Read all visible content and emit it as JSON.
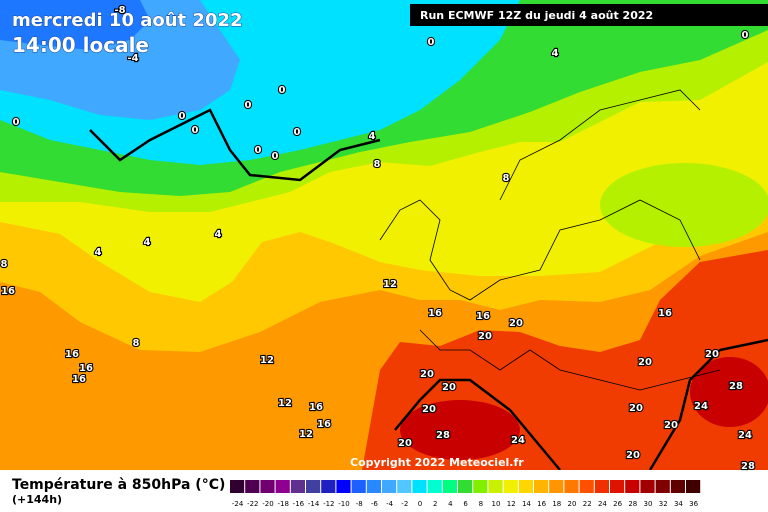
{
  "header": {
    "date": "mercredi 10 août 2022",
    "time": "14:00 locale",
    "run_info": "Run ECMWF 12Z du jeudi 4 août 2022"
  },
  "footer": {
    "copyright": "Copyright 2022 Meteociel.fr"
  },
  "legend": {
    "title": "Température à 850hPa (°C)",
    "range": "(+144h)",
    "ticks": [
      -24,
      -22,
      -20,
      -18,
      -16,
      -14,
      -12,
      -10,
      -8,
      -6,
      -4,
      -2,
      0,
      2,
      4,
      6,
      8,
      10,
      12,
      14,
      16,
      18,
      20,
      22,
      24,
      26,
      28,
      30,
      32,
      34,
      36
    ],
    "colors": [
      "#300030",
      "#500050",
      "#700070",
      "#900090",
      "#603090",
      "#4040a0",
      "#2020c0",
      "#0000ff",
      "#1e60ff",
      "#2888ff",
      "#40a8ff",
      "#50c8ff",
      "#00e0ff",
      "#00ffd0",
      "#00ff80",
      "#32dc32",
      "#80f000",
      "#c8f000",
      "#f0f000",
      "#ffd700",
      "#ffb400",
      "#ff9600",
      "#ff7800",
      "#ff5000",
      "#f03000",
      "#dc1400",
      "#c80000",
      "#a00000",
      "#800000",
      "#600000",
      "#400000"
    ]
  },
  "contour_labels": [
    -8,
    -4,
    0,
    0,
    0,
    0,
    0,
    0,
    0,
    0,
    0,
    0,
    4,
    4,
    8,
    8,
    4,
    4,
    4,
    8,
    16,
    12,
    16,
    16,
    20,
    20,
    16,
    8,
    12,
    16,
    16,
    16,
    12,
    16,
    16,
    12,
    20,
    20,
    20,
    20,
    28,
    24,
    20,
    20,
    28,
    24,
    20,
    20,
    24,
    20,
    28
  ]
}
